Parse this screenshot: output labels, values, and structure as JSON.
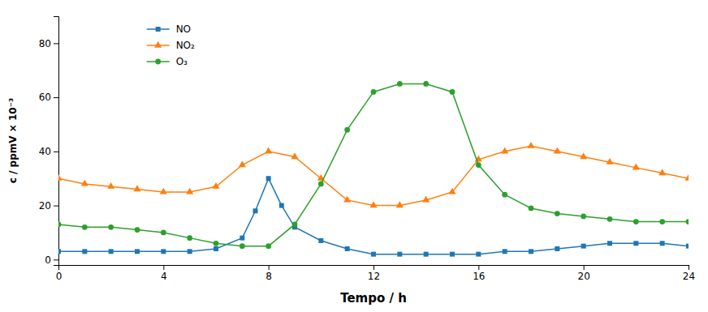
{
  "chart_data": {
    "type": "line",
    "xlabel": "Tempo / h",
    "ylabel": "c / ppmV × 10⁻³",
    "xlim": [
      0,
      24
    ],
    "ylim": [
      -2,
      90
    ],
    "xticks": [
      0,
      4,
      8,
      12,
      16,
      20,
      24
    ],
    "yticks": [
      0,
      20,
      40,
      60,
      80
    ],
    "grid": false,
    "legend": "upper left",
    "series": [
      {
        "name": "NO",
        "marker": "square",
        "x": [
          0,
          1,
          2,
          3,
          4,
          5,
          6,
          7,
          7.5,
          8,
          8.5,
          9,
          10,
          11,
          12,
          13,
          14,
          15,
          16,
          17,
          18,
          19,
          20,
          21,
          22,
          23,
          24
        ],
        "values": [
          3,
          3,
          3,
          3,
          3,
          3,
          4,
          8,
          18,
          30,
          20,
          12,
          7,
          4,
          2,
          2,
          2,
          2,
          2,
          3,
          3,
          4,
          5,
          6,
          6,
          6,
          5
        ]
      },
      {
        "name": "NO₂",
        "marker": "triangle",
        "x": [
          0,
          1,
          2,
          3,
          4,
          5,
          6,
          7,
          8,
          9,
          10,
          11,
          12,
          13,
          14,
          15,
          16,
          17,
          18,
          19,
          20,
          21,
          22,
          23,
          24
        ],
        "values": [
          30,
          28,
          27,
          26,
          25,
          25,
          27,
          35,
          40,
          38,
          30,
          22,
          20,
          20,
          22,
          25,
          37,
          40,
          42,
          40,
          38,
          36,
          34,
          32,
          30
        ]
      },
      {
        "name": "O₃",
        "marker": "circle",
        "x": [
          0,
          1,
          2,
          3,
          4,
          5,
          6,
          7,
          8,
          9,
          10,
          11,
          12,
          13,
          14,
          15,
          16,
          17,
          18,
          19,
          20,
          21,
          22,
          23,
          24
        ],
        "values": [
          13,
          12,
          12,
          11,
          10,
          8,
          6,
          5,
          5,
          13,
          28,
          48,
          62,
          65,
          65,
          62,
          35,
          24,
          19,
          17,
          16,
          15,
          14,
          14,
          14
        ]
      }
    ]
  }
}
